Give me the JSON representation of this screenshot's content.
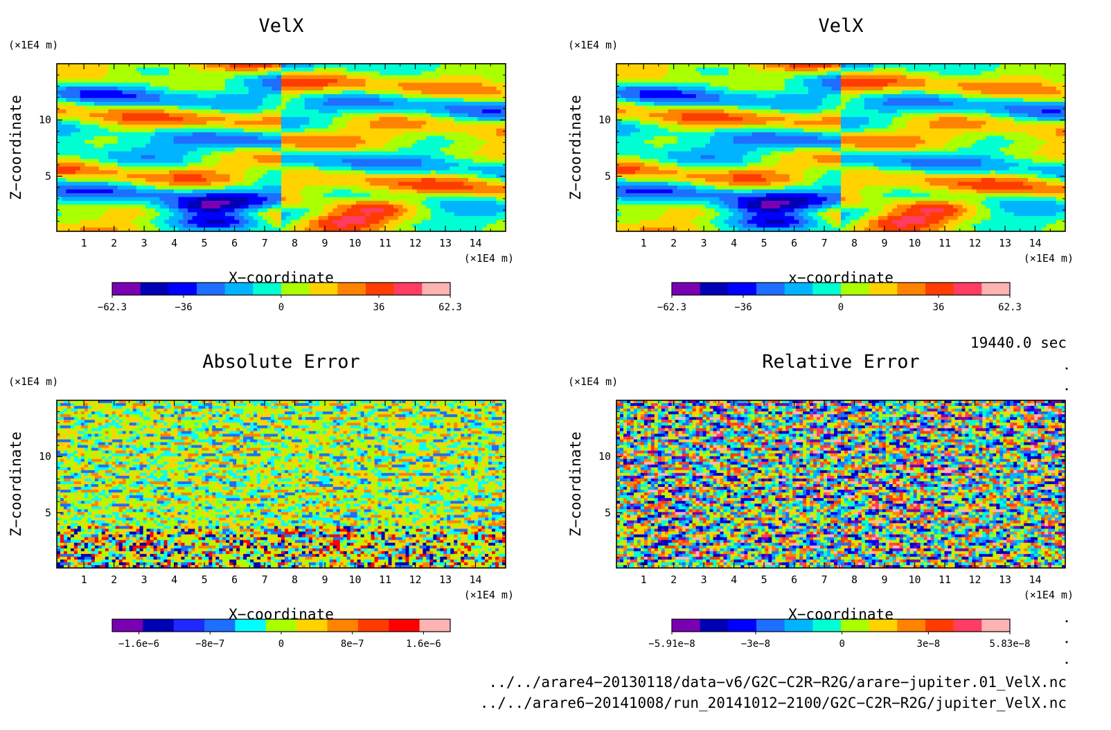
{
  "chart_data": [
    {
      "type": "heatmap",
      "title": "VelX",
      "xlabel": "X−coordinate",
      "ylabel": "Z−coordinate",
      "x_unit": "(×1E4 m)",
      "y_unit": "(×1E4 m)",
      "x_ticks": [
        1,
        2,
        3,
        4,
        5,
        6,
        7,
        8,
        9,
        10,
        11,
        12,
        13,
        14
      ],
      "y_ticks": [
        5,
        10
      ],
      "xlim": [
        0.1,
        15
      ],
      "ylim": [
        0.1,
        15
      ],
      "colorbar": {
        "min": -62.3,
        "max": 62.3,
        "tick_values": [
          -62.3,
          -36,
          0,
          36,
          62.3
        ],
        "tick_labels": [
          "−62.3",
          "−36",
          "0",
          "36",
          "62.3"
        ]
      },
      "pattern": "smooth"
    },
    {
      "type": "heatmap",
      "title": "VelX",
      "xlabel": "x−coordinate",
      "ylabel": "Z−coordinate",
      "x_unit": "(×1E4 m)",
      "y_unit": "(×1E4 m)",
      "x_ticks": [
        1,
        2,
        3,
        4,
        5,
        6,
        7,
        8,
        9,
        10,
        11,
        12,
        13,
        14
      ],
      "y_ticks": [
        5,
        10
      ],
      "xlim": [
        0.1,
        15
      ],
      "ylim": [
        0.1,
        15
      ],
      "colorbar": {
        "min": -62.3,
        "max": 62.3,
        "tick_values": [
          -62.3,
          -36,
          0,
          36,
          62.3
        ],
        "tick_labels": [
          "−62.3",
          "−36",
          "0",
          "36",
          "62.3"
        ]
      },
      "pattern": "smooth"
    },
    {
      "type": "heatmap",
      "title": "Absolute Error",
      "xlabel": "X−coordinate",
      "ylabel": "Z−coordinate",
      "x_unit": "(×1E4 m)",
      "y_unit": "(×1E4 m)",
      "x_ticks": [
        1,
        2,
        3,
        4,
        5,
        6,
        7,
        8,
        9,
        10,
        11,
        12,
        13,
        14
      ],
      "y_ticks": [
        5,
        10
      ],
      "xlim": [
        0.1,
        15
      ],
      "ylim": [
        0.1,
        15
      ],
      "colorbar": {
        "min": -1.9e-06,
        "max": 1.9e-06,
        "tick_values": [
          -1.6e-06,
          -8e-07,
          0,
          8e-07,
          1.6e-06
        ],
        "tick_labels": [
          "−1.6e−6",
          "−8e−7",
          "0",
          "8e−7",
          "1.6e−6"
        ]
      },
      "pattern": "noise"
    },
    {
      "type": "heatmap",
      "title": "Relative Error",
      "xlabel": "X−coordinate",
      "ylabel": "Z−coordinate",
      "x_unit": "(×1E4 m)",
      "y_unit": "(×1E4 m)",
      "x_ticks": [
        1,
        2,
        3,
        4,
        5,
        6,
        7,
        8,
        9,
        10,
        11,
        12,
        13,
        14
      ],
      "y_ticks": [
        5,
        10
      ],
      "xlim": [
        0.1,
        15
      ],
      "ylim": [
        0.1,
        15
      ],
      "colorbar": {
        "min": -5.91e-08,
        "max": 5.83e-08,
        "tick_values": [
          -5.91e-08,
          -3e-08,
          0,
          3e-08,
          5.83e-08
        ],
        "tick_labels": [
          "−5.91e−8",
          "−3e−8",
          "0",
          "3e−8",
          "5.83e−8"
        ]
      },
      "pattern": "highnoise"
    }
  ],
  "time_label": "19440.0 sec",
  "file_paths": [
    "../../arare4−20130118/data−v6/G2C−C2R−R2G/arare−jupiter.01_VelX.nc",
    "../../arare6−20141008/run_20141012−2100/G2C−C2R−R2G/jupiter_VelX.nc"
  ],
  "colors": {
    "velx_colorbar": [
      "#7a00b4",
      "#0000b4",
      "#0000ff",
      "#1e6eff",
      "#00b4ff",
      "#00ffd2",
      "#aaff00",
      "#ffd200",
      "#ff8200",
      "#ff3c00",
      "#ff3c64",
      "#ffb4b4"
    ],
    "abs_colorbar": [
      "#7a00b4",
      "#0000b4",
      "#1e28ff",
      "#1e6eff",
      "#00ffff",
      "#aaff00",
      "#ffd200",
      "#ff8200",
      "#ff3c00",
      "#ff0000",
      "#ffb4b4"
    ],
    "rel_colorbar": [
      "#7a00b4",
      "#0000b4",
      "#0000ff",
      "#1e6eff",
      "#00b4ff",
      "#00ffd2",
      "#aaff00",
      "#ffd200",
      "#ff8200",
      "#ff3c00",
      "#ff3c64",
      "#ffb4b4"
    ]
  }
}
